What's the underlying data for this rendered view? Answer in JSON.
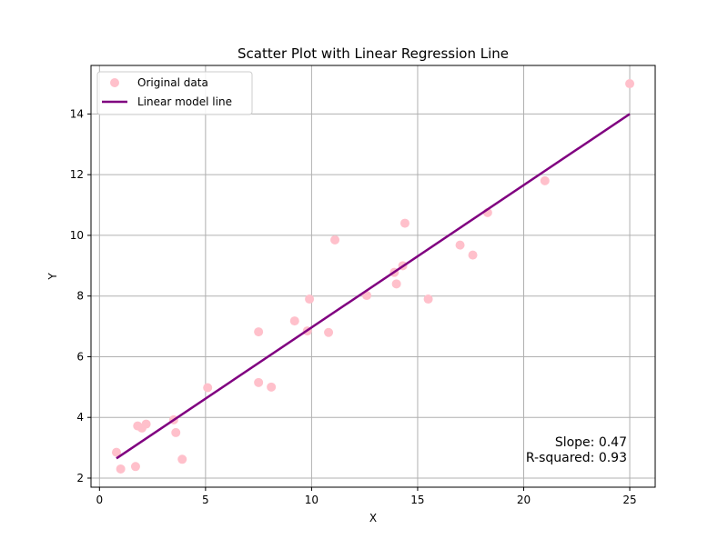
{
  "chart_data": {
    "type": "scatter",
    "title": "Scatter Plot with Linear Regression Line",
    "xlabel": "X",
    "ylabel": "Y",
    "xlim": [
      -0.4,
      26.2
    ],
    "ylim": [
      1.7,
      15.6
    ],
    "xticks": [
      0,
      5,
      10,
      15,
      20,
      25
    ],
    "yticks": [
      2,
      4,
      6,
      8,
      10,
      12,
      14
    ],
    "grid": true,
    "legend_position": "top-left",
    "colors": {
      "points": "#ffc0cb",
      "line": "#800080",
      "grid": "#b0b0b0",
      "axis": "#000000"
    },
    "series": [
      {
        "name": "Original data",
        "kind": "scatter",
        "points": [
          {
            "x": 0.8,
            "y": 2.85
          },
          {
            "x": 1.0,
            "y": 2.3
          },
          {
            "x": 1.7,
            "y": 2.38
          },
          {
            "x": 1.8,
            "y": 3.72
          },
          {
            "x": 2.0,
            "y": 3.65
          },
          {
            "x": 2.2,
            "y": 3.78
          },
          {
            "x": 3.5,
            "y": 3.92
          },
          {
            "x": 3.6,
            "y": 3.5
          },
          {
            "x": 3.9,
            "y": 2.62
          },
          {
            "x": 5.1,
            "y": 4.98
          },
          {
            "x": 7.5,
            "y": 6.82
          },
          {
            "x": 7.5,
            "y": 5.15
          },
          {
            "x": 8.1,
            "y": 5.0
          },
          {
            "x": 9.2,
            "y": 7.18
          },
          {
            "x": 9.8,
            "y": 6.85
          },
          {
            "x": 9.9,
            "y": 7.9
          },
          {
            "x": 10.8,
            "y": 6.8
          },
          {
            "x": 11.1,
            "y": 9.85
          },
          {
            "x": 12.6,
            "y": 8.02
          },
          {
            "x": 13.9,
            "y": 8.78
          },
          {
            "x": 14.0,
            "y": 8.4
          },
          {
            "x": 14.3,
            "y": 9.0
          },
          {
            "x": 14.4,
            "y": 10.4
          },
          {
            "x": 15.5,
            "y": 7.9
          },
          {
            "x": 17.0,
            "y": 9.68
          },
          {
            "x": 17.6,
            "y": 9.35
          },
          {
            "x": 18.3,
            "y": 10.75
          },
          {
            "x": 21.0,
            "y": 11.8
          },
          {
            "x": 25.0,
            "y": 15.0
          }
        ]
      },
      {
        "name": "Linear model line",
        "kind": "line",
        "points": [
          {
            "x": 0.8,
            "y": 2.65
          },
          {
            "x": 25.0,
            "y": 14.0
          }
        ]
      }
    ],
    "annotations": {
      "slope": "Slope: 0.47",
      "r_squared": "R-squared: 0.93"
    }
  }
}
